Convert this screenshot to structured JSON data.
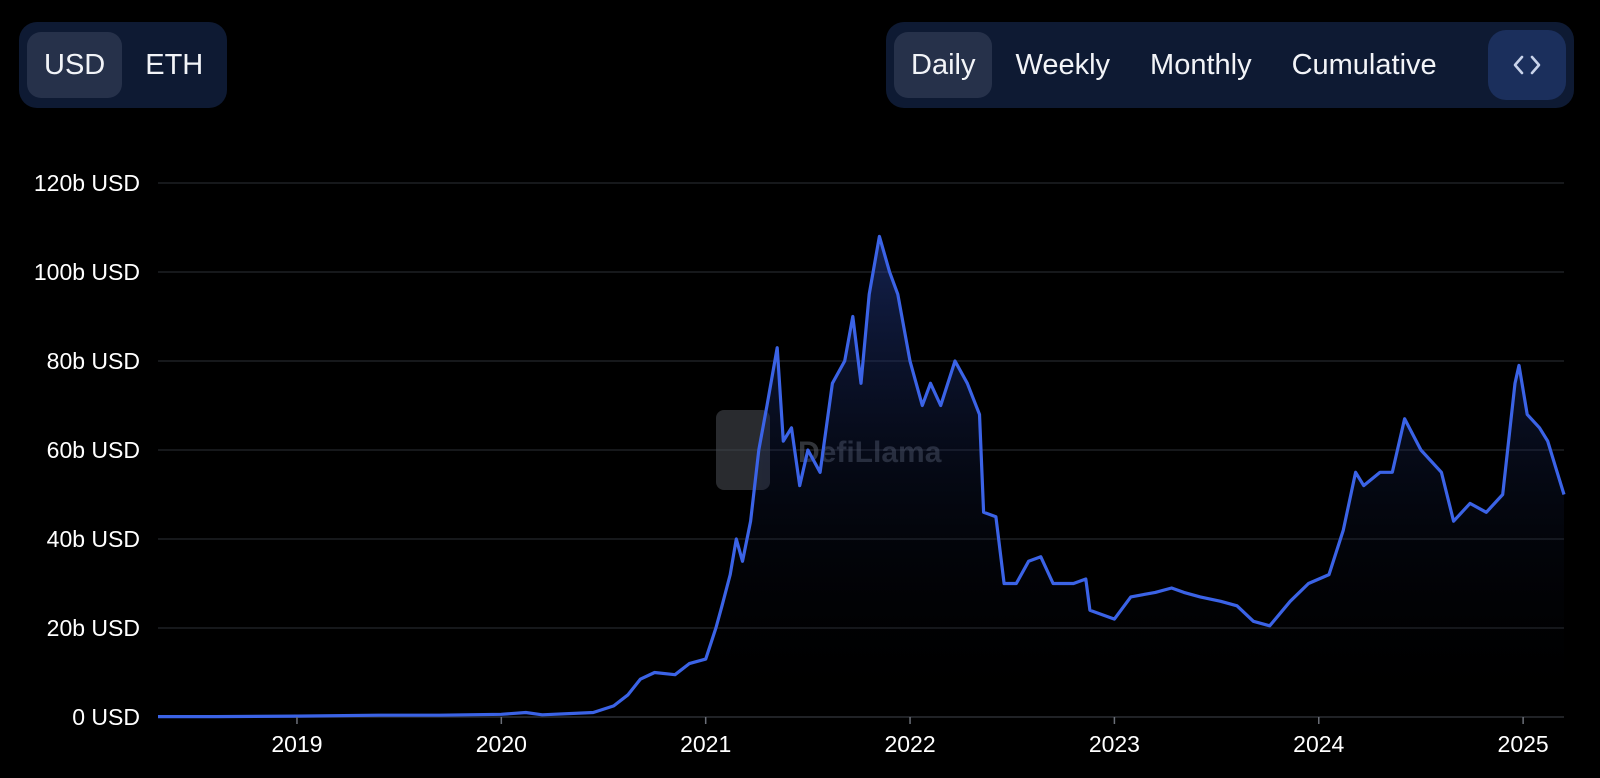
{
  "currency_toggle": {
    "options": [
      {
        "label": "USD",
        "active": true
      },
      {
        "label": "ETH",
        "active": false
      }
    ]
  },
  "period_toggle": {
    "options": [
      {
        "label": "Daily",
        "active": true
      },
      {
        "label": "Weekly",
        "active": false
      },
      {
        "label": "Monthly",
        "active": false
      },
      {
        "label": "Cumulative",
        "active": false
      }
    ],
    "embed_icon": "code-brackets-icon"
  },
  "watermark": {
    "text": "DefiLlama"
  },
  "colors": {
    "line": "#3b63e6",
    "fill_top": "#243d8f",
    "grid": "#1e2024",
    "toggle_bg": "#0e1a33",
    "toggle_active": "#26314a",
    "embed_bg": "#1b2f5c"
  },
  "chart_data": {
    "type": "area",
    "title": "",
    "xlabel": "",
    "ylabel": "",
    "y_unit": "USD",
    "x_range": [
      2018.32,
      2025.2
    ],
    "ylim": [
      0,
      120
    ],
    "y_ticks": [
      "0 USD",
      "20b USD",
      "40b USD",
      "60b USD",
      "80b USD",
      "100b USD",
      "120b USD"
    ],
    "x_ticks": [
      "2019",
      "2020",
      "2021",
      "2022",
      "2023",
      "2024",
      "2025"
    ],
    "grid": true,
    "series": [
      {
        "values_unit": "billions USD",
        "points": [
          [
            2018.32,
            0.1
          ],
          [
            2018.6,
            0.1
          ],
          [
            2019.0,
            0.2
          ],
          [
            2019.4,
            0.4
          ],
          [
            2019.7,
            0.4
          ],
          [
            2020.0,
            0.6
          ],
          [
            2020.12,
            1.0
          ],
          [
            2020.2,
            0.5
          ],
          [
            2020.45,
            1.0
          ],
          [
            2020.55,
            2.5
          ],
          [
            2020.62,
            5.0
          ],
          [
            2020.68,
            8.5
          ],
          [
            2020.75,
            10.0
          ],
          [
            2020.85,
            9.5
          ],
          [
            2020.92,
            12.0
          ],
          [
            2021.0,
            13.0
          ],
          [
            2021.05,
            20.0
          ],
          [
            2021.08,
            25.0
          ],
          [
            2021.12,
            32.0
          ],
          [
            2021.15,
            40.0
          ],
          [
            2021.18,
            35.0
          ],
          [
            2021.22,
            44.0
          ],
          [
            2021.26,
            60.0
          ],
          [
            2021.3,
            70.0
          ],
          [
            2021.35,
            83.0
          ],
          [
            2021.38,
            62.0
          ],
          [
            2021.42,
            65.0
          ],
          [
            2021.46,
            52.0
          ],
          [
            2021.5,
            60.0
          ],
          [
            2021.56,
            55.0
          ],
          [
            2021.62,
            75.0
          ],
          [
            2021.68,
            80.0
          ],
          [
            2021.72,
            90.0
          ],
          [
            2021.76,
            75.0
          ],
          [
            2021.8,
            95.0
          ],
          [
            2021.85,
            108.0
          ],
          [
            2021.9,
            100.0
          ],
          [
            2021.94,
            95.0
          ],
          [
            2022.0,
            80.0
          ],
          [
            2022.06,
            70.0
          ],
          [
            2022.1,
            75.0
          ],
          [
            2022.15,
            70.0
          ],
          [
            2022.22,
            80.0
          ],
          [
            2022.28,
            75.0
          ],
          [
            2022.34,
            68.0
          ],
          [
            2022.36,
            46.0
          ],
          [
            2022.42,
            45.0
          ],
          [
            2022.46,
            30.0
          ],
          [
            2022.52,
            30.0
          ],
          [
            2022.58,
            35.0
          ],
          [
            2022.64,
            36.0
          ],
          [
            2022.7,
            30.0
          ],
          [
            2022.8,
            30.0
          ],
          [
            2022.86,
            31.0
          ],
          [
            2022.88,
            24.0
          ],
          [
            2023.0,
            22.0
          ],
          [
            2023.08,
            27.0
          ],
          [
            2023.2,
            28.0
          ],
          [
            2023.28,
            29.0
          ],
          [
            2023.34,
            28.0
          ],
          [
            2023.42,
            27.0
          ],
          [
            2023.52,
            26.0
          ],
          [
            2023.6,
            25.0
          ],
          [
            2023.68,
            21.5
          ],
          [
            2023.76,
            20.5
          ],
          [
            2023.86,
            26.0
          ],
          [
            2023.95,
            30.0
          ],
          [
            2024.05,
            32.0
          ],
          [
            2024.12,
            42.0
          ],
          [
            2024.18,
            55.0
          ],
          [
            2024.22,
            52.0
          ],
          [
            2024.3,
            55.0
          ],
          [
            2024.36,
            55.0
          ],
          [
            2024.42,
            67.0
          ],
          [
            2024.5,
            60.0
          ],
          [
            2024.6,
            55.0
          ],
          [
            2024.66,
            44.0
          ],
          [
            2024.74,
            48.0
          ],
          [
            2024.82,
            46.0
          ],
          [
            2024.9,
            50.0
          ],
          [
            2024.96,
            75.0
          ],
          [
            2024.98,
            79.0
          ],
          [
            2025.02,
            68.0
          ],
          [
            2025.08,
            65.0
          ],
          [
            2025.12,
            62.0
          ],
          [
            2025.16,
            56.0
          ],
          [
            2025.2,
            50.0
          ]
        ]
      }
    ]
  }
}
